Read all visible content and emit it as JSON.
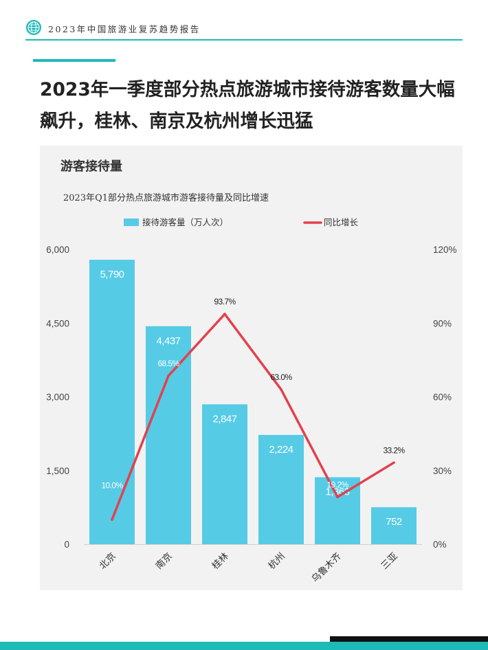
{
  "header": {
    "title": "2023年中国旅游业复苏趋势报告",
    "logo_icon": "globe-icon"
  },
  "page": {
    "title": "2023年一季度部分热点旅游城市接待游客数量大幅飙升，桂林、南京及杭州增长迅猛"
  },
  "panel": {
    "heading": "游客接待量"
  },
  "colors": {
    "accent": "#1dbab7",
    "bar": "#56cbe6",
    "line": "#e3414d",
    "panel": "#f2f2f2"
  },
  "chart_data": {
    "type": "bar",
    "title": "2023年Q1部分热点旅游城市游客接待量及同比增速",
    "categories": [
      "北京",
      "南京",
      "桂林",
      "杭州",
      "乌鲁木齐",
      "三亚"
    ],
    "series": [
      {
        "name": "接待游客量（万人次）",
        "type": "bar",
        "axis": "left",
        "values": [
          5790,
          4437,
          2847,
          2224,
          1363,
          752
        ],
        "labels": [
          "5,790",
          "4,437",
          "2,847",
          "2,224",
          "1,363",
          "752"
        ]
      },
      {
        "name": "同比增长",
        "type": "line",
        "axis": "right",
        "values": [
          10.0,
          68.5,
          93.7,
          63.0,
          19.2,
          33.2
        ],
        "labels": [
          "10.0%",
          "68.5%",
          "93.7%",
          "63.0%",
          "19.2%",
          "33.2%"
        ]
      }
    ],
    "y_left": {
      "min": 0,
      "max": 6000,
      "ticks": [
        "0",
        "1,500",
        "3,000",
        "4,500",
        "6,000"
      ],
      "tick_values": [
        0,
        1500,
        3000,
        4500,
        6000
      ]
    },
    "y_right": {
      "min": 0,
      "max": 120,
      "ticks": [
        "0%",
        "30%",
        "60%",
        "90%",
        "120%"
      ],
      "tick_values": [
        0,
        30,
        60,
        90,
        120
      ]
    },
    "legend_position": "top",
    "grid": false
  }
}
